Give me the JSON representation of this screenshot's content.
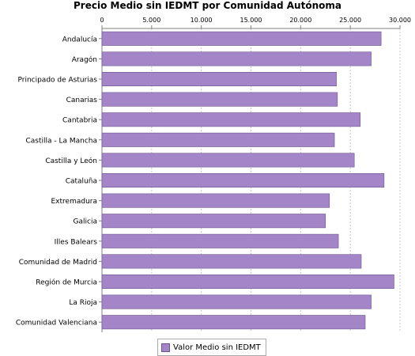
{
  "chart_data": {
    "type": "bar",
    "orientation": "horizontal",
    "title": "Precio Medio sin IEDMT por Comunidad Autónoma",
    "xlabel": "",
    "ylabel": "",
    "xlim": [
      0,
      30000
    ],
    "ticks": [
      0,
      5000,
      10000,
      15000,
      20000,
      25000,
      30000
    ],
    "tick_labels": [
      "0",
      "5.000",
      "10.000",
      "15.000",
      "20.000",
      "25.000",
      "30.000"
    ],
    "grid": true,
    "legend_position": "bottom",
    "bar_color": "#a385c8",
    "bar_edge_color": "#6c5491",
    "categories": [
      "Andalucía",
      "Aragón",
      "Principado de Asturias",
      "Canarias",
      "Cantabria",
      "Castilla - La Mancha",
      "Castilla y León",
      "Cataluña",
      "Extremadura",
      "Galicia",
      "Illes Balears",
      "Comunidad de Madrid",
      "Región de Murcia",
      "La Rioja",
      "Comunidad Valenciana"
    ],
    "series": [
      {
        "name": "Valor Medio sin IEDMT",
        "values": [
          28100,
          27100,
          23600,
          23700,
          26000,
          23400,
          25400,
          28400,
          22900,
          22500,
          23800,
          26100,
          29400,
          27100,
          26500
        ]
      }
    ]
  }
}
